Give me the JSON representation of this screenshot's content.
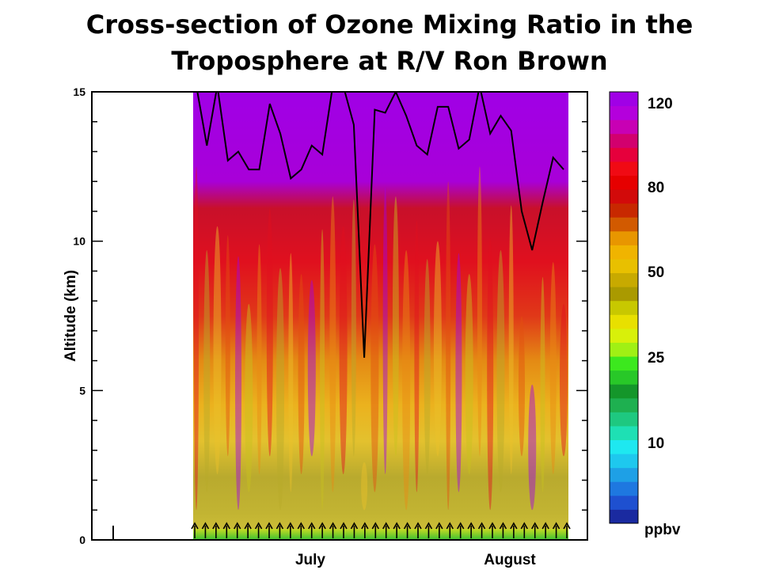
{
  "chart_data": {
    "type": "heatmap",
    "title_lines": [
      "Cross-section of Ozone Mixing Ratio in the",
      "Troposphere at R/V Ron Brown"
    ],
    "ylabel": "Altitude (km)",
    "ylim": [
      0,
      15
    ],
    "yticks": [
      0,
      5,
      10,
      15
    ],
    "x_month_labels": [
      "July",
      "August"
    ],
    "colorbar": {
      "unit": "ppbv",
      "labels": [
        "120",
        "80",
        "50",
        "25",
        "10"
      ],
      "label_values": [
        120,
        80,
        50,
        25,
        10
      ],
      "colors": [
        "#1a2aa0",
        "#1e50d0",
        "#1e78e0",
        "#1ea0e6",
        "#1ec8ee",
        "#1ee8f0",
        "#1ee0b4",
        "#1ec880",
        "#1eb050",
        "#14962a",
        "#28c828",
        "#3ce81e",
        "#a0f014",
        "#d8f00a",
        "#e8e000",
        "#c8c800",
        "#aa9a00",
        "#c8aa00",
        "#e8c000",
        "#f0b400",
        "#e89600",
        "#d25a00",
        "#c82800",
        "#d20a0a",
        "#e60000",
        "#f00a14",
        "#e6003c",
        "#d2006e",
        "#c800b4",
        "#b400dc",
        "#a000e6"
      ]
    },
    "tropopause_km": [
      15.2,
      13.2,
      15.2,
      12.7,
      13.0,
      12.4,
      12.4,
      14.6,
      13.6,
      12.1,
      12.4,
      13.2,
      12.9,
      15.2,
      15.2,
      13.9,
      6.1,
      14.4,
      14.3,
      15.0,
      14.2,
      13.2,
      12.9,
      14.5,
      14.5,
      13.1,
      13.4,
      15.2,
      13.6,
      14.2,
      13.7,
      11.0,
      9.7,
      11.3,
      12.8,
      12.4
    ],
    "sonde_launch_count": 36
  }
}
